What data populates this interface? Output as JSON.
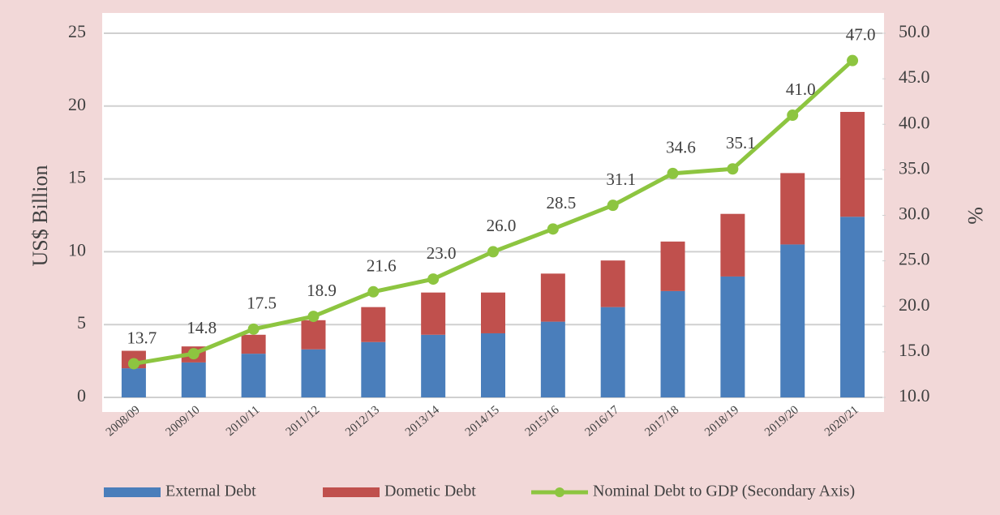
{
  "chart_data": {
    "type": "bar",
    "categories": [
      "2008/09",
      "2009/10",
      "2010/11",
      "2011/12",
      "2012/13",
      "2013/14",
      "2014/15",
      "2015/16",
      "2016/17",
      "2017/18",
      "2018/19",
      "2019/20",
      "2020/21"
    ],
    "ylabel": "US$ Billion",
    "y2label": "%",
    "ylim": [
      0,
      25
    ],
    "yticks": [
      0,
      5,
      10,
      15,
      20,
      25
    ],
    "y2lim": [
      10,
      50
    ],
    "y2ticks": [
      {
        "value": 10,
        "label": "10.0"
      },
      {
        "value": 15,
        "label": "15.0"
      },
      {
        "value": 20,
        "label": "20.0"
      },
      {
        "value": 25,
        "label": "25.0"
      },
      {
        "value": 30,
        "label": "30.0"
      },
      {
        "value": 35,
        "label": "35.0"
      },
      {
        "value": 40,
        "label": "40.0"
      },
      {
        "value": 45,
        "label": "45.0"
      },
      {
        "value": 50,
        "label": "50.0"
      }
    ],
    "grid": true,
    "stacked": true,
    "legend": "bottom",
    "series": [
      {
        "name": "External Debt",
        "color": "#4a7ebb",
        "values": [
          2.0,
          2.4,
          3.0,
          3.3,
          3.8,
          4.3,
          4.4,
          5.2,
          6.2,
          7.3,
          8.3,
          10.5,
          12.4
        ]
      },
      {
        "name": "Dometic Debt",
        "color": "#c0504d",
        "values": [
          1.2,
          1.1,
          1.3,
          2.0,
          2.4,
          2.9,
          2.8,
          3.3,
          3.2,
          3.4,
          4.3,
          4.9,
          7.2
        ]
      },
      {
        "name": "Nominal Debt to GDP (Secondary Axis)",
        "color": "#8dc540",
        "type": "line",
        "axis": "y2",
        "values": [
          13.7,
          14.8,
          17.5,
          18.9,
          21.6,
          23.0,
          26.0,
          28.5,
          31.1,
          34.6,
          35.1,
          41.0,
          47.0
        ],
        "value_labels": [
          "13.7",
          "14.8",
          "17.5",
          "18.9",
          "21.6",
          "23.0",
          "26.0",
          "28.5",
          "31.1",
          "34.6",
          "35.1",
          "41.0",
          "47.0"
        ]
      }
    ]
  }
}
